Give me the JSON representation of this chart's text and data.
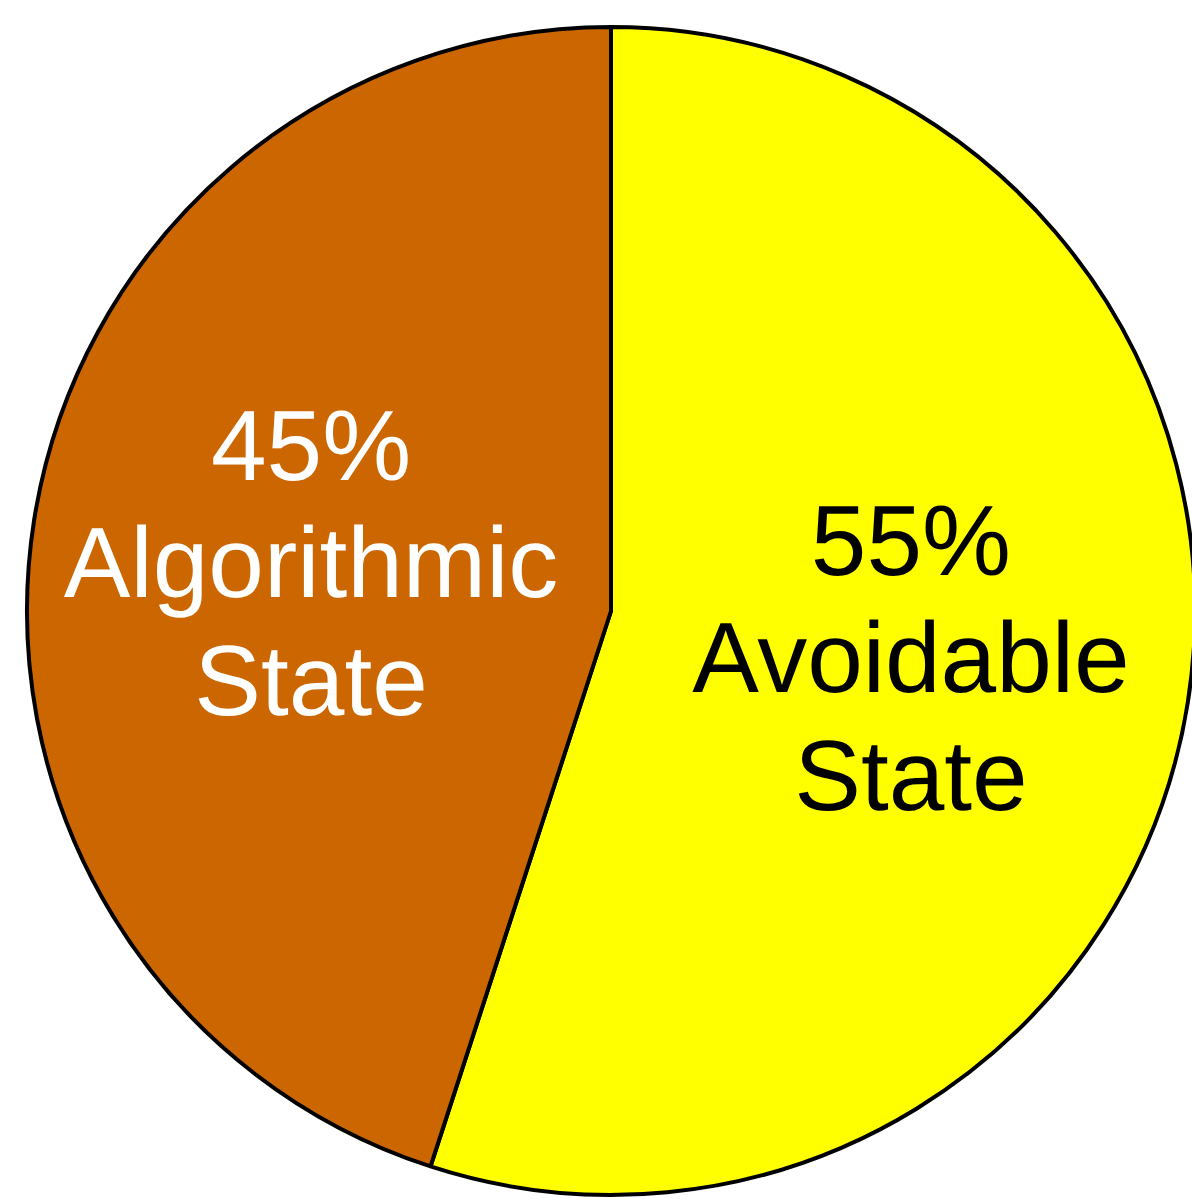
{
  "chart_data": {
    "type": "pie",
    "categories": [
      "Avoidable State",
      "Algorithmic State"
    ],
    "values": [
      55,
      45
    ],
    "colors": [
      "#ffff00",
      "#cc6600"
    ],
    "value_labels": [
      "55%",
      "45%"
    ]
  }
}
